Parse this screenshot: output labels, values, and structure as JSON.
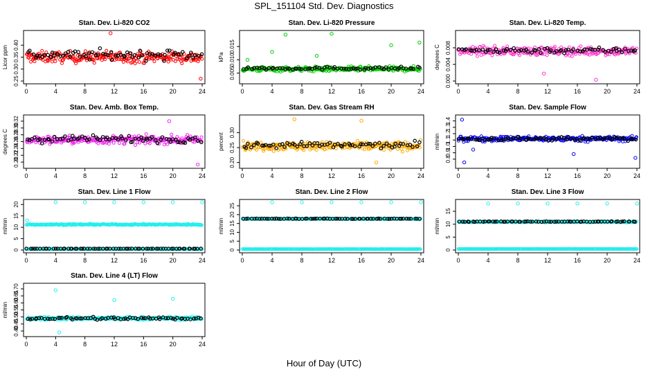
{
  "page": {
    "title": "SPL_151104  Std. Dev. Diagnostics",
    "xlabel": "Hour of Day (UTC)"
  },
  "chart_data": [
    {
      "type": "scatter",
      "title": "Stan. Dev. Li-820 CO2",
      "ylabel": "Licor ppm",
      "xlim": [
        0,
        24
      ],
      "ylim": [
        0.25,
        0.45
      ],
      "yticks": [
        0.25,
        0.3,
        0.35,
        0.4
      ],
      "xticks": [
        0,
        4,
        8,
        12,
        16,
        20,
        24
      ],
      "color": "#ff0000",
      "series": [
        {
          "color": "#ff0000",
          "band": {
            "center": 0.35,
            "spread": 0.04
          },
          "outliers": [
            [
              11.5,
              0.45
            ],
            [
              23.8,
              0.26
            ]
          ]
        },
        {
          "color": "#000000",
          "band": {
            "center": 0.36,
            "spread": 0.035
          },
          "outliers": []
        }
      ]
    },
    {
      "type": "scatter",
      "title": "Stan. Dev. Li-820 Pressure",
      "ylabel": "kPa",
      "xlim": [
        0,
        24
      ],
      "ylim": [
        0.002,
        0.02
      ],
      "yticks": [
        0.005,
        0.01,
        0.015
      ],
      "xticks": [
        0,
        4,
        8,
        12,
        16,
        20,
        24
      ],
      "color": "#00cc00",
      "series": [
        {
          "color": "#00cc00",
          "band": {
            "center": 0.0065,
            "spread": 0.0016
          },
          "outliers": [
            [
              12,
              0.0198
            ],
            [
              20,
              0.0155
            ],
            [
              23.8,
              0.0165
            ],
            [
              4,
              0.013
            ],
            [
              10,
              0.0115
            ],
            [
              5.8,
              0.0195
            ],
            [
              0.7,
              0.01
            ]
          ]
        },
        {
          "color": "#000000",
          "band": {
            "center": 0.0068,
            "spread": 0.001
          },
          "outliers": []
        }
      ]
    },
    {
      "type": "scatter",
      "title": "Stan. Dev. Li-820 Temp.",
      "ylabel": "degrees C",
      "xlim": [
        0,
        24
      ],
      "ylim": [
        0,
        0.0115
      ],
      "yticks": [
        0.0,
        0.004,
        0.008
      ],
      "xticks": [
        0,
        4,
        8,
        12,
        16,
        20,
        24
      ],
      "color": "#ff33cc",
      "series": [
        {
          "color": "#ff33cc",
          "band": {
            "center": 0.0072,
            "spread": 0.0018
          },
          "outliers": [
            [
              18.5,
              0.0003
            ],
            [
              11.5,
              0.0018
            ]
          ]
        },
        {
          "color": "#000000",
          "band": {
            "center": 0.0074,
            "spread": 0.0012
          },
          "outliers": []
        }
      ]
    },
    {
      "type": "scatter",
      "title": "Stan. Dev. Amb. Box Temp.",
      "ylabel": "degrees C",
      "xlim": [
        0,
        24
      ],
      "ylim": [
        0.19,
        0.33
      ],
      "yticks": [
        0.2,
        0.22,
        0.24,
        0.26,
        0.28,
        0.3,
        0.32
      ],
      "xticks": [
        0,
        4,
        8,
        12,
        16,
        20,
        24
      ],
      "color": "#ee22ee",
      "series": [
        {
          "color": "#ee22ee",
          "band": {
            "center": 0.265,
            "spread": 0.02
          },
          "outliers": [
            [
              23.4,
              0.193
            ],
            [
              19.5,
              0.32
            ]
          ]
        },
        {
          "color": "#000000",
          "band": {
            "center": 0.268,
            "spread": 0.018
          },
          "outliers": []
        }
      ]
    },
    {
      "type": "scatter",
      "title": "Stan. Dev. Gas Stream RH",
      "ylabel": "percent",
      "xlim": [
        0,
        24
      ],
      "ylim": [
        0.19,
        0.35
      ],
      "yticks": [
        0.2,
        0.25,
        0.3
      ],
      "xticks": [
        0,
        4,
        8,
        12,
        16,
        20,
        24
      ],
      "color": "#ffaa00",
      "series": [
        {
          "color": "#ffaa00",
          "band": {
            "center": 0.255,
            "spread": 0.025
          },
          "outliers": [
            [
              7,
              0.345
            ],
            [
              16,
              0.34
            ],
            [
              18,
              0.2
            ]
          ]
        },
        {
          "color": "#000000",
          "band": {
            "center": 0.258,
            "spread": 0.018
          },
          "outliers": []
        }
      ]
    },
    {
      "type": "scatter",
      "title": "Stan. Dev. Sample Flow",
      "ylabel": "ml/min",
      "xlim": [
        0,
        24
      ],
      "ylim": [
        0.7,
        1.45
      ],
      "yticks": [
        0.8,
        0.9,
        1.0,
        1.1,
        1.2,
        1.3,
        1.4
      ],
      "xticks": [
        0,
        4,
        8,
        12,
        16,
        20,
        24
      ],
      "color": "#0000ee",
      "series": [
        {
          "color": "#0000ee",
          "band": {
            "center": 1.12,
            "spread": 0.07
          },
          "outliers": [
            [
              0.5,
              1.42
            ],
            [
              0.8,
              0.75
            ],
            [
              23.8,
              0.82
            ],
            [
              15.5,
              0.88
            ],
            [
              2,
              0.95
            ]
          ]
        },
        {
          "color": "#000000",
          "band": {
            "center": 1.12,
            "spread": 0.05
          },
          "outliers": []
        }
      ]
    },
    {
      "type": "scatter",
      "title": "Stan. Dev. Line 1 Flow",
      "ylabel": "ml/min",
      "xlim": [
        0,
        24
      ],
      "ylim": [
        0,
        21
      ],
      "yticks": [
        0,
        5,
        10,
        15,
        20
      ],
      "xticks": [
        0,
        4,
        8,
        12,
        16,
        20,
        24
      ],
      "color": "#22eeee",
      "series": [
        {
          "color": "#22eeee",
          "band": {
            "center": 11.2,
            "spread": 0.5
          },
          "outliers": [
            [
              4,
              21
            ],
            [
              8,
              21
            ],
            [
              12,
              21
            ],
            [
              16,
              21
            ],
            [
              20,
              21
            ],
            [
              24,
              21
            ],
            [
              0.1,
              13
            ]
          ]
        },
        {
          "color": "#22eeee",
          "band": {
            "center": 0.4,
            "spread": 0.1
          },
          "outliers": []
        },
        {
          "color": "#000000",
          "band": {
            "center": 0.6,
            "spread": 0.05
          },
          "outliers": []
        }
      ]
    },
    {
      "type": "scatter",
      "title": "Stan. Dev. Line 2 Flow",
      "ylabel": "ml/min",
      "xlim": [
        0,
        24
      ],
      "ylim": [
        0,
        27
      ],
      "yticks": [
        0,
        5,
        10,
        15,
        20,
        25
      ],
      "xticks": [
        0,
        4,
        8,
        12,
        16,
        20,
        24
      ],
      "color": "#22eeee",
      "series": [
        {
          "color": "#22eeee",
          "band": {
            "center": 17.6,
            "spread": 0.4
          },
          "outliers": [
            [
              4,
              27
            ],
            [
              8,
              27
            ],
            [
              12,
              27
            ],
            [
              16,
              27
            ],
            [
              20,
              27
            ],
            [
              24,
              27
            ]
          ]
        },
        {
          "color": "#22eeee",
          "band": {
            "center": 0.5,
            "spread": 0.1
          },
          "outliers": []
        },
        {
          "color": "#000000",
          "band": {
            "center": 17.7,
            "spread": 0.2
          },
          "outliers": []
        }
      ]
    },
    {
      "type": "scatter",
      "title": "Stan. Dev. Line 3 Flow",
      "ylabel": "ml/min",
      "xlim": [
        0,
        24
      ],
      "ylim": [
        0,
        18.5
      ],
      "yticks": [
        0,
        5,
        10,
        15
      ],
      "xticks": [
        0,
        4,
        8,
        12,
        16,
        20,
        24
      ],
      "color": "#22eeee",
      "series": [
        {
          "color": "#22eeee",
          "band": {
            "center": 10.9,
            "spread": 0.4
          },
          "outliers": [
            [
              4,
              18
            ],
            [
              8,
              18
            ],
            [
              12,
              18
            ],
            [
              16,
              18
            ],
            [
              20,
              18
            ],
            [
              24,
              18
            ]
          ]
        },
        {
          "color": "#22eeee",
          "band": {
            "center": 0.4,
            "spread": 0.1
          },
          "outliers": []
        },
        {
          "color": "#000000",
          "band": {
            "center": 11.0,
            "spread": 0.2
          },
          "outliers": []
        }
      ]
    },
    {
      "type": "scatter",
      "title": "Stan. Dev. Line 4 (LT) Flow",
      "ylabel": "ml/min",
      "xlim": [
        0,
        24
      ],
      "ylim": [
        0.38,
        0.72
      ],
      "yticks": [
        0.4,
        0.45,
        0.5,
        0.55,
        0.6,
        0.65,
        0.7
      ],
      "xticks": [
        0,
        4,
        8,
        12,
        16,
        20,
        24
      ],
      "color": "#22eeee",
      "series": [
        {
          "color": "#22eeee",
          "band": {
            "center": 0.49,
            "spread": 0.02
          },
          "outliers": [
            [
              4,
              0.69
            ],
            [
              12,
              0.62
            ],
            [
              20,
              0.63
            ],
            [
              4.5,
              0.39
            ]
          ]
        },
        {
          "color": "#000000",
          "band": {
            "center": 0.49,
            "spread": 0.02
          },
          "outliers": []
        }
      ]
    }
  ]
}
